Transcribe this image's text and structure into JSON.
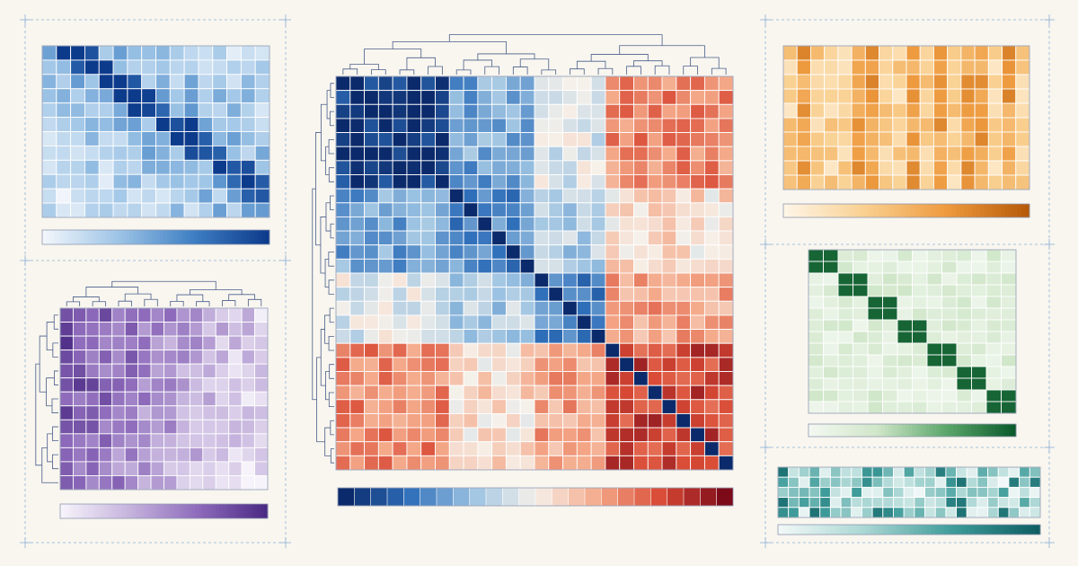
{
  "chart_data": [
    {
      "id": "main",
      "type": "heatmap",
      "cmap": [
        "#0b2a6b",
        "#2f6fba",
        "#9cc3e2",
        "#f6f1ea",
        "#f4a888",
        "#d94a35",
        "#7c0a19"
      ],
      "vmin": -1,
      "vmax": 1,
      "colorbar_steps": 24,
      "dendrogram": true,
      "rows": 28,
      "cols": 28,
      "blocks": [
        {
          "start": 0,
          "end": 7
        },
        {
          "start": 8,
          "end": 13
        },
        {
          "start": 14,
          "end": 18
        },
        {
          "start": 19,
          "end": 27
        }
      ],
      "block_values": [
        [
          -0.92,
          -0.45,
          -0.1,
          0.45
        ],
        [
          -0.45,
          -0.55,
          -0.25,
          0.1
        ],
        [
          -0.1,
          -0.25,
          -0.6,
          0.35
        ],
        [
          0.45,
          0.1,
          0.35,
          0.7
        ]
      ],
      "diagonal": -1,
      "diagonal_tail_start": 19,
      "diagonal_tail_value": -1
    },
    {
      "id": "top-left",
      "type": "heatmap",
      "cmap": [
        "#f2f6fb",
        "#9dc4e6",
        "#3f7fc3",
        "#0d3b8c"
      ],
      "vmin": 0,
      "vmax": 1,
      "colorbar_steps": 60,
      "dendrogram": false,
      "rows": 12,
      "cols": 16,
      "pattern": "diagonal-band"
    },
    {
      "id": "bottom-left",
      "type": "heatmap",
      "cmap": [
        "#f6f3fa",
        "#c5b3dd",
        "#8e6bbb",
        "#4b2a84"
      ],
      "vmin": 0,
      "vmax": 1,
      "colorbar_steps": 60,
      "dendrogram": true,
      "rows": 13,
      "cols": 16,
      "pattern": "column-gradient"
    },
    {
      "id": "top-right",
      "type": "heatmap",
      "cmap": [
        "#fef5e6",
        "#f9cf8f",
        "#ee9a3e",
        "#b65a09"
      ],
      "vmin": 0,
      "vmax": 1,
      "colorbar_steps": 60,
      "dendrogram": false,
      "rows": 10,
      "cols": 18,
      "pattern": "column-stripes"
    },
    {
      "id": "mid-right",
      "type": "heatmap",
      "cmap": [
        "#f3f8f1",
        "#cfe6c8",
        "#5ba66a",
        "#0b5a2c"
      ],
      "vmin": 0,
      "vmax": 1,
      "colorbar_steps": 60,
      "dendrogram": false,
      "rows": 14,
      "cols": 14,
      "pattern": "pair-diagonal"
    },
    {
      "id": "bottom-right",
      "type": "heatmap",
      "cmap": [
        "#f1f8f7",
        "#a9d6d3",
        "#3f9c9a",
        "#0f5e62"
      ],
      "vmin": 0,
      "vmax": 1,
      "colorbar_steps": 60,
      "dendrogram": false,
      "rows": 5,
      "cols": 25,
      "pattern": "random"
    }
  ]
}
